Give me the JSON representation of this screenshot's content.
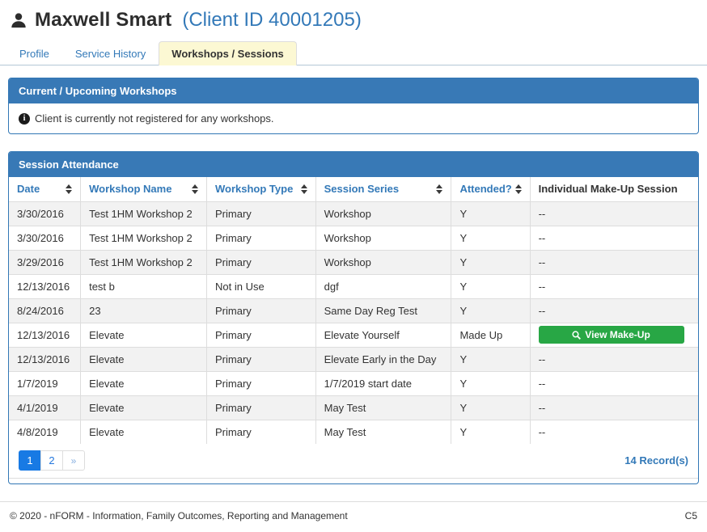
{
  "page": {
    "title_name": "Maxwell Smart",
    "title_client_id": "(Client ID 40001205)"
  },
  "icons": {
    "title": "user-icon",
    "upcoming_message": "info-circle-icon",
    "make_up_button": "search-icon",
    "sortable_columns": "sort-arrows-icon"
  },
  "colors": {
    "accent_blue": "#3379b8",
    "panel_header_blue": "#3879b6",
    "active_tab_yellow": "#fcf8d3",
    "success_green": "#28a745",
    "pagination_active_blue": "#187ae4",
    "stripe_gray": "#f2f2f2"
  },
  "tabs": [
    {
      "label": "Profile",
      "active": false
    },
    {
      "label": "Service History",
      "active": false
    },
    {
      "label": "Workshops / Sessions",
      "active": true
    }
  ],
  "upcoming_panel": {
    "title": "Current / Upcoming Workshops",
    "message": "Client is currently not registered for any workshops."
  },
  "attendance_panel": {
    "title": "Session Attendance",
    "columns": [
      {
        "label": "Date",
        "sortable": true
      },
      {
        "label": "Workshop Name",
        "sortable": true
      },
      {
        "label": "Workshop Type",
        "sortable": true
      },
      {
        "label": "Session Series",
        "sortable": true
      },
      {
        "label": "Attended?",
        "sortable": true
      },
      {
        "label": "Individual Make-Up Session",
        "sortable": false
      }
    ],
    "rows": [
      {
        "date": "3/30/2016",
        "workshop_name": "Test 1HM Workshop 2",
        "workshop_type": "Primary",
        "session_series": "Workshop",
        "attended": "Y",
        "make_up": "--"
      },
      {
        "date": "3/30/2016",
        "workshop_name": "Test 1HM Workshop 2",
        "workshop_type": "Primary",
        "session_series": "Workshop",
        "attended": "Y",
        "make_up": "--"
      },
      {
        "date": "3/29/2016",
        "workshop_name": "Test 1HM Workshop 2",
        "workshop_type": "Primary",
        "session_series": "Workshop",
        "attended": "Y",
        "make_up": "--"
      },
      {
        "date": "12/13/2016",
        "workshop_name": "test b",
        "workshop_type": "Not in Use",
        "session_series": "dgf",
        "attended": "Y",
        "make_up": "--"
      },
      {
        "date": "8/24/2016",
        "workshop_name": "23",
        "workshop_type": "Primary",
        "session_series": "Same Day Reg Test",
        "attended": "Y",
        "make_up": "--"
      },
      {
        "date": "12/13/2016",
        "workshop_name": "Elevate",
        "workshop_type": "Primary",
        "session_series": "Elevate Yourself",
        "attended": "Made Up",
        "make_up": "button",
        "make_up_button": "View Make-Up"
      },
      {
        "date": "12/13/2016",
        "workshop_name": "Elevate",
        "workshop_type": "Primary",
        "session_series": "Elevate Early in the Day",
        "attended": "Y",
        "make_up": "--"
      },
      {
        "date": "1/7/2019",
        "workshop_name": "Elevate",
        "workshop_type": "Primary",
        "session_series": "1/7/2019 start date",
        "attended": "Y",
        "make_up": "--"
      },
      {
        "date": "4/1/2019",
        "workshop_name": "Elevate",
        "workshop_type": "Primary",
        "session_series": "May Test",
        "attended": "Y",
        "make_up": "--"
      },
      {
        "date": "4/8/2019",
        "workshop_name": "Elevate",
        "workshop_type": "Primary",
        "session_series": "May Test",
        "attended": "Y",
        "make_up": "--"
      }
    ],
    "pagination": {
      "pages": [
        "1",
        "2",
        "»"
      ],
      "active_page": "1"
    },
    "record_count": "14 Record(s)"
  },
  "footer": {
    "left": "© 2020 - nFORM - Information, Family Outcomes, Reporting and Management",
    "right": "C5"
  }
}
